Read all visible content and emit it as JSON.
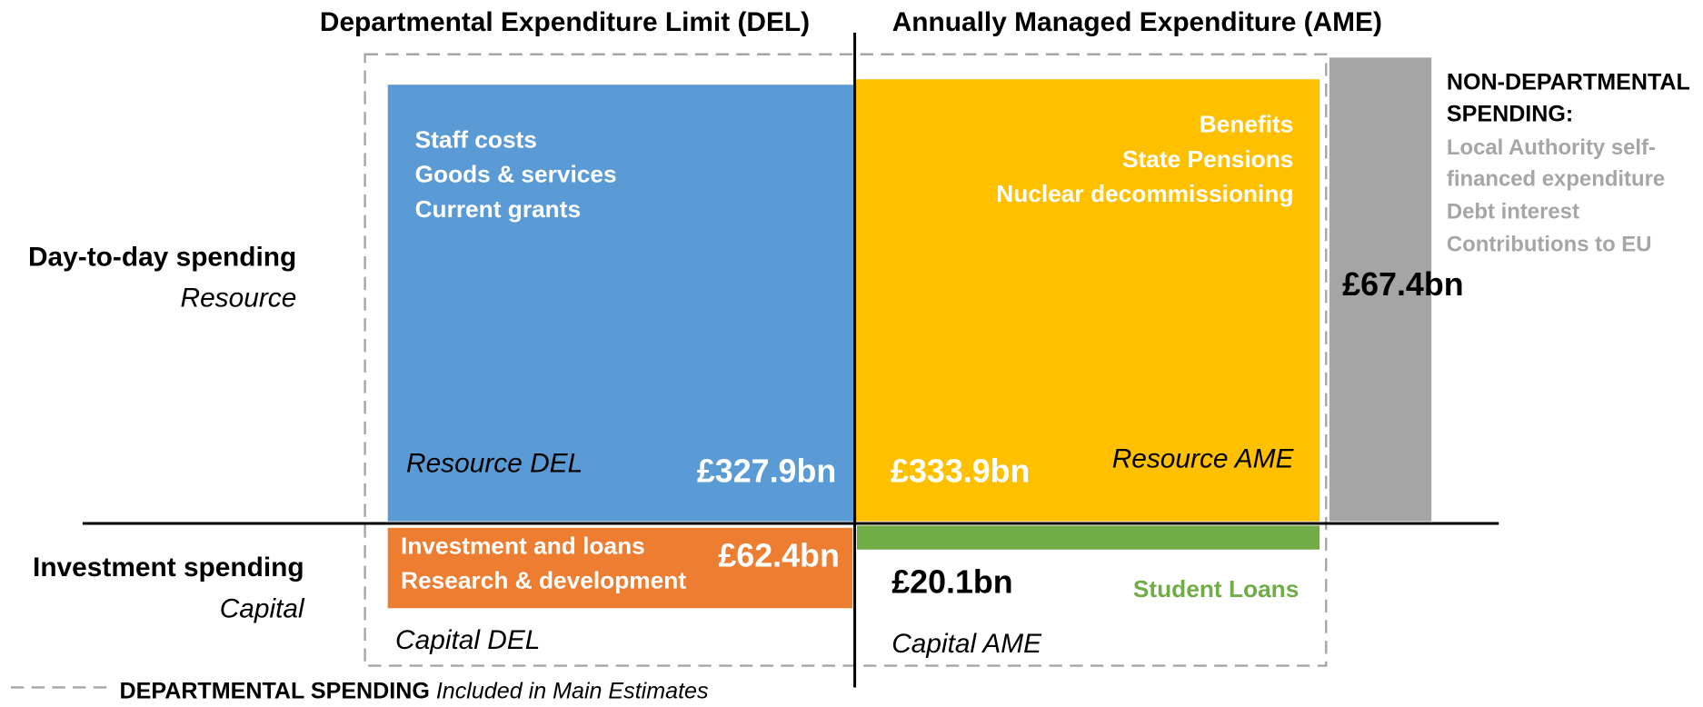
{
  "header": {
    "del_title": "Departmental Expenditure Limit (DEL)",
    "ame_title": "Annually Managed Expenditure (AME)"
  },
  "rows": [
    {
      "label": "Day-to-day spending",
      "sublabel": "Resource"
    },
    {
      "label": "Investment spending",
      "sublabel": "Capital"
    }
  ],
  "boxes": {
    "resource_del": {
      "items": [
        "Staff costs",
        "Goods & services",
        "Current grants"
      ],
      "label": "Resource DEL",
      "amount": "£327.9bn"
    },
    "resource_ame": {
      "items": [
        "Benefits",
        "State Pensions",
        "Nuclear decommissioning"
      ],
      "label": "Resource AME",
      "amount": "£333.9bn"
    },
    "capital_del": {
      "items": [
        "Investment and loans",
        "Research & development"
      ],
      "label": "Capital DEL",
      "amount": "£62.4bn"
    },
    "capital_ame": {
      "items": [
        "Student Loans"
      ],
      "label": "Capital AME",
      "amount": "£20.1bn"
    }
  },
  "non_departmental": {
    "title": [
      "NON-DEPARTMENTAL",
      "SPENDING:"
    ],
    "items": [
      "Local Authority self-",
      "financed expenditure",
      "Debt interest",
      "Contributions to EU"
    ],
    "amount": "£67.4bn"
  },
  "legend": {
    "title": "DEPARTMENTAL SPENDING",
    "note": "Included in Main Estimates"
  }
}
